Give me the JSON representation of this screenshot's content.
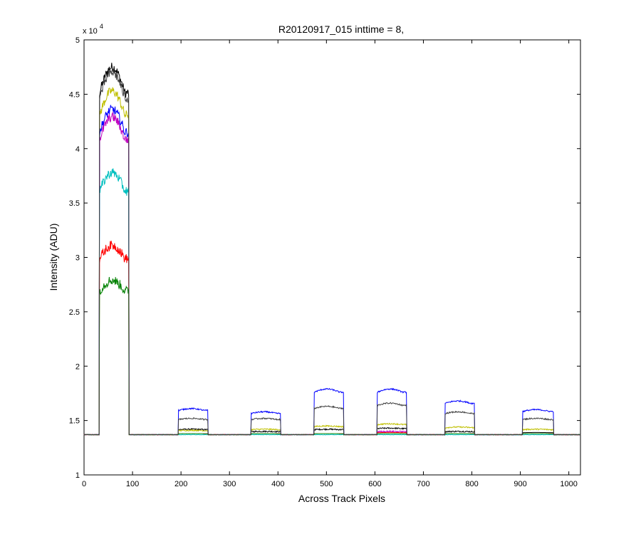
{
  "chart_data": {
    "type": "line",
    "title": "R20120917_015 inttime = 8,",
    "xlabel": "Across Track Pixels",
    "ylabel": "Intensity (ADU)",
    "y_multiplier_base": "x 10",
    "y_multiplier_exp": "4",
    "xlim": [
      0,
      1024
    ],
    "ylim": [
      1,
      5
    ],
    "xticks": [
      0,
      100,
      200,
      300,
      400,
      500,
      600,
      700,
      800,
      900,
      1000
    ],
    "yticks": [
      1,
      1.5,
      2,
      2.5,
      3,
      3.5,
      4,
      4.5,
      5
    ],
    "grid": false,
    "legend": "none",
    "baseline": 1.37,
    "segments": [
      {
        "start": 32,
        "end": 92
      },
      {
        "start": 195,
        "end": 255
      },
      {
        "start": 345,
        "end": 405
      },
      {
        "start": 475,
        "end": 535
      },
      {
        "start": 605,
        "end": 665
      },
      {
        "start": 745,
        "end": 805
      },
      {
        "start": 905,
        "end": 968
      }
    ],
    "series": [
      {
        "color": "#000000",
        "plateaus": [
          4.75,
          1.42,
          1.4,
          1.42,
          1.43,
          1.4,
          1.39
        ]
      },
      {
        "color": "#bfbf00",
        "plateaus": [
          4.53,
          1.41,
          1.42,
          1.45,
          1.47,
          1.44,
          1.42
        ]
      },
      {
        "color": "#0000ff",
        "plateaus": [
          4.36,
          1.61,
          1.58,
          1.79,
          1.79,
          1.68,
          1.6
        ]
      },
      {
        "color": "#bf00bf",
        "plateaus": [
          4.29,
          1.38,
          1.38,
          1.38,
          1.4,
          1.38,
          1.38
        ]
      },
      {
        "color": "#00bfbf",
        "plateaus": [
          3.78,
          1.37,
          1.37,
          1.37,
          1.37,
          1.37,
          1.37
        ]
      },
      {
        "color": "#ff0000",
        "plateaus": [
          3.11,
          1.38,
          1.38,
          1.38,
          1.39,
          1.38,
          1.38
        ]
      },
      {
        "color": "#008000",
        "plateaus": [
          2.79,
          1.38,
          1.38,
          1.38,
          1.38,
          1.38,
          1.38
        ]
      },
      {
        "color": "#404040",
        "plateaus": [
          4.7,
          1.52,
          1.52,
          1.63,
          1.66,
          1.58,
          1.52
        ]
      }
    ]
  }
}
